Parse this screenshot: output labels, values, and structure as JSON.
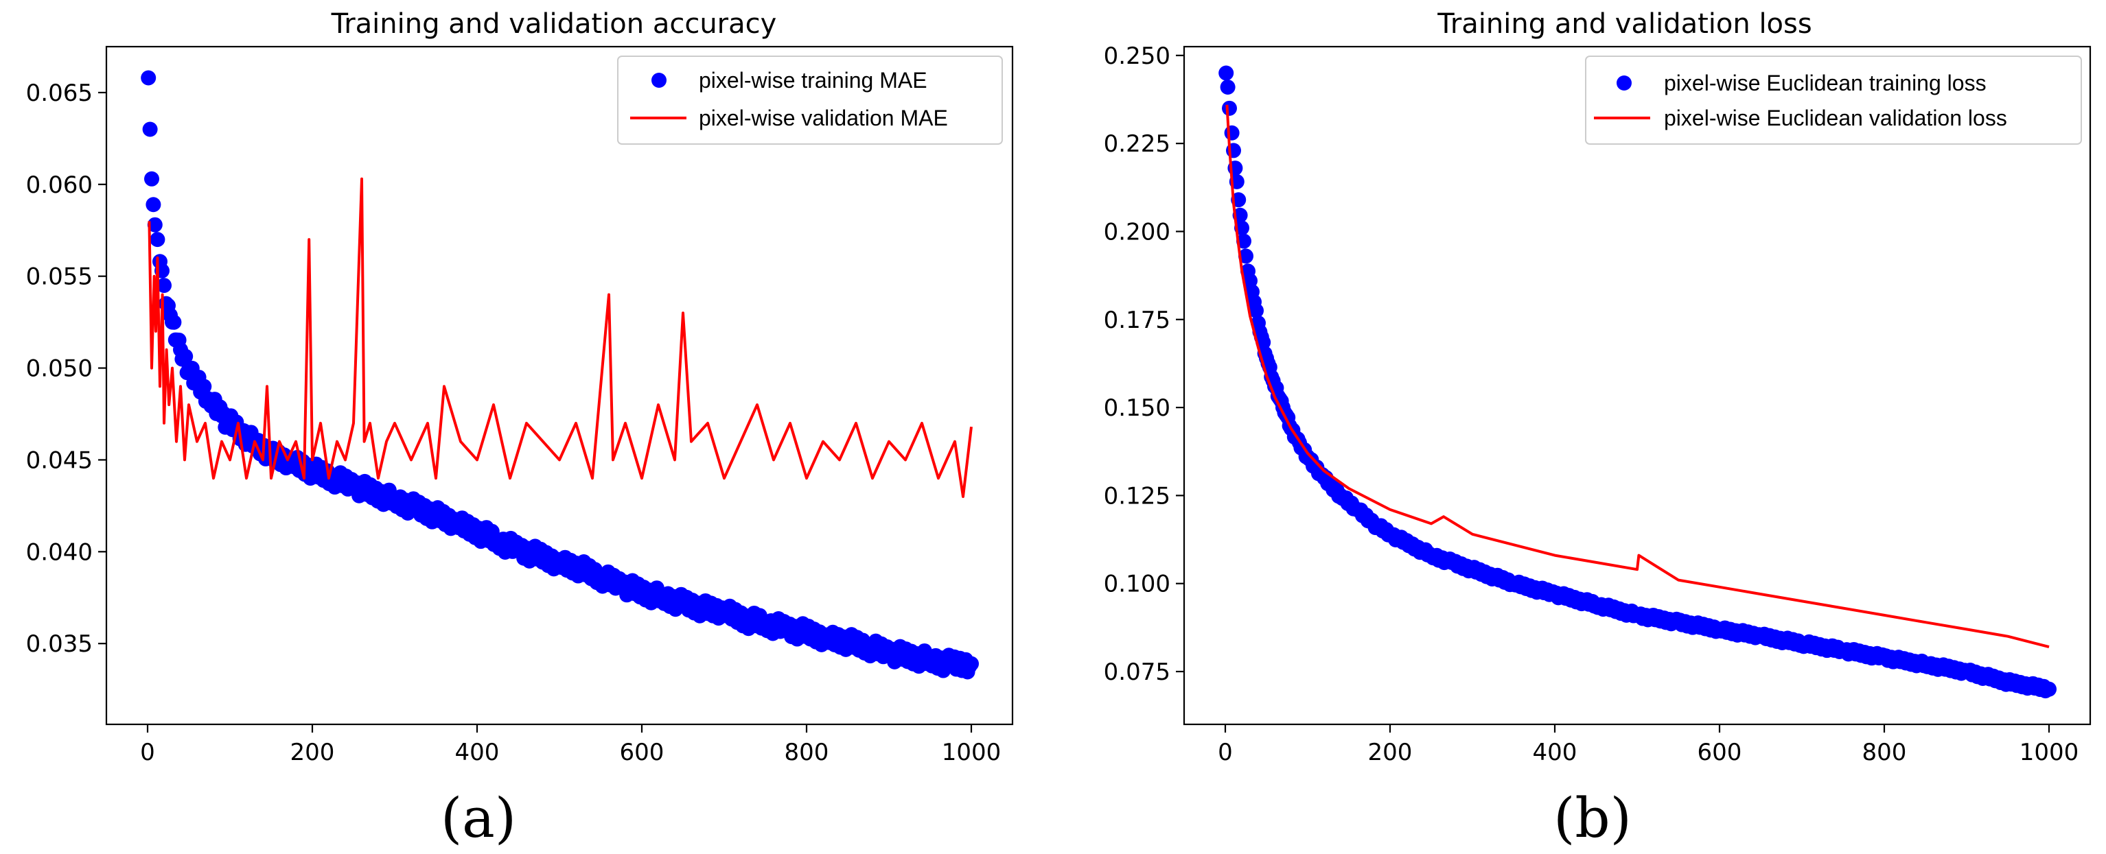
{
  "chart_data": [
    {
      "type": "scatter",
      "panel_label": "(a)",
      "title": "Training and validation accuracy",
      "xlabel": "",
      "ylabel": "",
      "xlim": [
        -50,
        1050
      ],
      "ylim": [
        0.0306,
        0.0675
      ],
      "xticks": [
        0,
        200,
        400,
        600,
        800,
        1000
      ],
      "xtick_labels": [
        "0",
        "200",
        "400",
        "600",
        "800",
        "1000"
      ],
      "yticks": [
        0.035,
        0.04,
        0.045,
        0.05,
        0.055,
        0.06,
        0.065
      ],
      "ytick_labels": [
        "0.035",
        "0.040",
        "0.045",
        "0.050",
        "0.055",
        "0.060",
        "0.065"
      ],
      "legend_position": "top-right",
      "series": [
        {
          "name": "pixel-wise training MAE",
          "kind": "scatter",
          "color": "#0000ff",
          "x": [
            1,
            3,
            5,
            7,
            9,
            12,
            15,
            20,
            25,
            30,
            40,
            50,
            60,
            75,
            90,
            110,
            130,
            150,
            175,
            200,
            225,
            250,
            275,
            300,
            325,
            350,
            375,
            400,
            425,
            450,
            475,
            500,
            525,
            550,
            575,
            600,
            625,
            650,
            675,
            700,
            725,
            750,
            775,
            800,
            825,
            850,
            875,
            900,
            925,
            950,
            975,
            1000
          ],
          "y": [
            0.0658,
            0.063,
            0.0603,
            0.0589,
            0.0578,
            0.057,
            0.0558,
            0.0545,
            0.0534,
            0.0525,
            0.051,
            0.0499,
            0.0492,
            0.0482,
            0.0474,
            0.0466,
            0.0459,
            0.0453,
            0.0449,
            0.0444,
            0.044,
            0.0436,
            0.0432,
            0.0428,
            0.0424,
            0.042,
            0.0415,
            0.0411,
            0.0406,
            0.0401,
            0.0398,
            0.0394,
            0.0391,
            0.0386,
            0.0382,
            0.0378,
            0.0375,
            0.0372,
            0.0369,
            0.0367,
            0.0363,
            0.0361,
            0.0358,
            0.0356,
            0.0353,
            0.0351,
            0.0348,
            0.0345,
            0.0343,
            0.0341,
            0.0339,
            0.0339
          ]
        },
        {
          "name": "pixel-wise validation MAE",
          "kind": "line",
          "color": "#ff0000",
          "x": [
            2,
            5,
            8,
            10,
            12,
            15,
            18,
            20,
            23,
            26,
            30,
            35,
            40,
            45,
            50,
            60,
            70,
            80,
            90,
            100,
            110,
            120,
            130,
            140,
            145,
            150,
            160,
            170,
            180,
            190,
            196,
            200,
            210,
            220,
            230,
            240,
            250,
            260,
            263,
            270,
            280,
            290,
            300,
            320,
            340,
            350,
            360,
            380,
            400,
            420,
            440,
            460,
            480,
            500,
            520,
            540,
            560,
            565,
            580,
            600,
            620,
            640,
            650,
            660,
            680,
            700,
            720,
            740,
            760,
            780,
            800,
            820,
            840,
            860,
            880,
            900,
            920,
            940,
            960,
            980,
            990,
            1000
          ],
          "y": [
            0.058,
            0.05,
            0.055,
            0.052,
            0.056,
            0.049,
            0.054,
            0.047,
            0.051,
            0.048,
            0.05,
            0.046,
            0.049,
            0.045,
            0.048,
            0.046,
            0.047,
            0.044,
            0.046,
            0.045,
            0.047,
            0.044,
            0.046,
            0.045,
            0.049,
            0.044,
            0.046,
            0.045,
            0.046,
            0.044,
            0.057,
            0.045,
            0.047,
            0.044,
            0.046,
            0.045,
            0.047,
            0.0603,
            0.046,
            0.047,
            0.044,
            0.046,
            0.047,
            0.045,
            0.047,
            0.044,
            0.049,
            0.046,
            0.045,
            0.048,
            0.044,
            0.047,
            0.046,
            0.045,
            0.047,
            0.044,
            0.054,
            0.045,
            0.047,
            0.044,
            0.048,
            0.045,
            0.053,
            0.046,
            0.047,
            0.044,
            0.046,
            0.048,
            0.045,
            0.047,
            0.044,
            0.046,
            0.045,
            0.047,
            0.044,
            0.046,
            0.045,
            0.047,
            0.044,
            0.046,
            0.043,
            0.0468
          ]
        }
      ]
    },
    {
      "type": "scatter",
      "panel_label": "(b)",
      "title": "Training and validation loss",
      "xlabel": "",
      "ylabel": "",
      "xlim": [
        -50,
        1050
      ],
      "ylim": [
        0.06,
        0.2525
      ],
      "xticks": [
        0,
        200,
        400,
        600,
        800,
        1000
      ],
      "xtick_labels": [
        "0",
        "200",
        "400",
        "600",
        "800",
        "1000"
      ],
      "yticks": [
        0.075,
        0.1,
        0.125,
        0.15,
        0.175,
        0.2,
        0.225,
        0.25
      ],
      "ytick_labels": [
        "0.075",
        "0.100",
        "0.125",
        "0.150",
        "0.175",
        "0.200",
        "0.225",
        "0.250"
      ],
      "legend_position": "top-right",
      "series": [
        {
          "name": "pixel-wise Euclidean training loss",
          "kind": "scatter",
          "color": "#0000ff",
          "x": [
            1,
            3,
            5,
            8,
            12,
            16,
            20,
            25,
            30,
            35,
            40,
            50,
            60,
            70,
            80,
            90,
            100,
            120,
            140,
            160,
            180,
            200,
            225,
            250,
            275,
            300,
            350,
            400,
            450,
            500,
            550,
            600,
            650,
            700,
            750,
            800,
            850,
            900,
            950,
            1000
          ],
          "y": [
            0.245,
            0.241,
            0.235,
            0.228,
            0.218,
            0.209,
            0.201,
            0.193,
            0.186,
            0.18,
            0.174,
            0.164,
            0.156,
            0.15,
            0.144,
            0.14,
            0.136,
            0.13,
            0.125,
            0.121,
            0.117,
            0.114,
            0.111,
            0.108,
            0.106,
            0.104,
            0.1,
            0.097,
            0.094,
            0.091,
            0.089,
            0.087,
            0.085,
            0.083,
            0.081,
            0.079,
            0.077,
            0.075,
            0.072,
            0.07
          ]
        },
        {
          "name": "pixel-wise Euclidean validation loss",
          "kind": "line",
          "color": "#ff0000",
          "x": [
            2,
            5,
            10,
            15,
            20,
            30,
            40,
            50,
            60,
            80,
            100,
            120,
            150,
            175,
            200,
            250,
            265,
            300,
            350,
            400,
            450,
            500,
            502,
            550,
            600,
            650,
            700,
            750,
            800,
            850,
            900,
            950,
            1000
          ],
          "y": [
            0.236,
            0.224,
            0.208,
            0.198,
            0.189,
            0.176,
            0.167,
            0.159,
            0.153,
            0.144,
            0.137,
            0.132,
            0.127,
            0.124,
            0.121,
            0.117,
            0.119,
            0.114,
            0.111,
            0.108,
            0.106,
            0.104,
            0.108,
            0.101,
            0.099,
            0.097,
            0.095,
            0.093,
            0.091,
            0.089,
            0.087,
            0.085,
            0.082
          ]
        }
      ]
    }
  ]
}
